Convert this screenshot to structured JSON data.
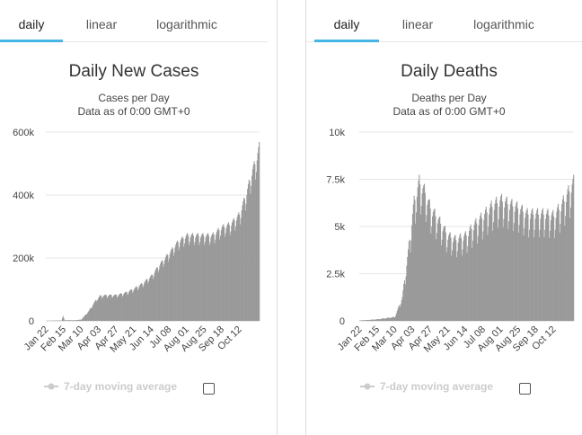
{
  "tabs": [
    {
      "label": "daily",
      "active": true
    },
    {
      "label": "linear",
      "active": false
    },
    {
      "label": "logarithmic",
      "active": false
    }
  ],
  "legend_label": "7-day moving average",
  "colors": {
    "accent": "#45b6e6",
    "bars": "#999999",
    "legend": "#cccccc"
  },
  "chart_data": [
    {
      "type": "bar",
      "title": "Daily New Cases",
      "subtitle_lines": [
        "Cases per Day",
        "Data as of 0:00 GMT+0"
      ],
      "ylim": [
        0,
        600000
      ],
      "yticks": [
        0,
        200000,
        400000,
        600000
      ],
      "ytick_labels": [
        "0",
        "200k",
        "400k",
        "600k"
      ],
      "xtick_labels": [
        "Jan 22",
        "Feb 15",
        "Mar 10",
        "Apr 03",
        "Apr 27",
        "May 21",
        "Jun 14",
        "Jul 08",
        "Aug 01",
        "Aug 25",
        "Sep 18",
        "Oct 12"
      ],
      "x_start": "2020-01-22",
      "x_end": "2020-11-08",
      "approx_trend": [
        [
          "2020-01-22",
          0
        ],
        [
          "2020-02-12",
          1500
        ],
        [
          "2020-02-14",
          15000
        ],
        [
          "2020-02-16",
          2000
        ],
        [
          "2020-03-01",
          2000
        ],
        [
          "2020-03-10",
          4000
        ],
        [
          "2020-03-20",
          30000
        ],
        [
          "2020-03-30",
          65000
        ],
        [
          "2020-04-05",
          78000
        ],
        [
          "2020-04-15",
          80000
        ],
        [
          "2020-04-27",
          80000
        ],
        [
          "2020-05-10",
          88000
        ],
        [
          "2020-05-21",
          100000
        ],
        [
          "2020-06-01",
          115000
        ],
        [
          "2020-06-14",
          140000
        ],
        [
          "2020-06-25",
          175000
        ],
        [
          "2020-07-08",
          210000
        ],
        [
          "2020-07-20",
          245000
        ],
        [
          "2020-08-01",
          265000
        ],
        [
          "2020-08-12",
          265000
        ],
        [
          "2020-08-25",
          265000
        ],
        [
          "2020-09-05",
          265000
        ],
        [
          "2020-09-18",
          290000
        ],
        [
          "2020-09-30",
          300000
        ],
        [
          "2020-10-12",
          330000
        ],
        [
          "2020-10-22",
          400000
        ],
        [
          "2020-10-30",
          470000
        ],
        [
          "2020-11-04",
          500000
        ],
        [
          "2020-11-08",
          540000
        ]
      ]
    },
    {
      "type": "bar",
      "title": "Daily Deaths",
      "subtitle_lines": [
        "Deaths per Day",
        "Data as of 0:00 GMT+0"
      ],
      "ylim": [
        0,
        10000
      ],
      "yticks": [
        0,
        2500,
        5000,
        7500,
        10000
      ],
      "ytick_labels": [
        "0",
        "2.5k",
        "5k",
        "7.5k",
        "10k"
      ],
      "xtick_labels": [
        "Jan 22",
        "Feb 15",
        "Mar 10",
        "Apr 03",
        "Apr 27",
        "May 21",
        "Jun 14",
        "Jul 08",
        "Aug 01",
        "Aug 25",
        "Sep 18",
        "Oct 12"
      ],
      "x_start": "2020-01-22",
      "x_end": "2020-11-08",
      "approx_trend": [
        [
          "2020-01-22",
          20
        ],
        [
          "2020-02-15",
          80
        ],
        [
          "2020-03-10",
          200
        ],
        [
          "2020-03-20",
          1200
        ],
        [
          "2020-03-28",
          3500
        ],
        [
          "2020-04-05",
          6000
        ],
        [
          "2020-04-12",
          7000
        ],
        [
          "2020-04-20",
          6500
        ],
        [
          "2020-04-27",
          5700
        ],
        [
          "2020-05-10",
          5000
        ],
        [
          "2020-05-21",
          4300
        ],
        [
          "2020-06-01",
          4100
        ],
        [
          "2020-06-14",
          4300
        ],
        [
          "2020-06-25",
          4800
        ],
        [
          "2020-07-08",
          5300
        ],
        [
          "2020-07-20",
          5800
        ],
        [
          "2020-08-01",
          6100
        ],
        [
          "2020-08-12",
          5900
        ],
        [
          "2020-08-25",
          5700
        ],
        [
          "2020-09-05",
          5400
        ],
        [
          "2020-09-18",
          5400
        ],
        [
          "2020-09-30",
          5400
        ],
        [
          "2020-10-12",
          5300
        ],
        [
          "2020-10-22",
          5800
        ],
        [
          "2020-11-01",
          6500
        ],
        [
          "2020-11-08",
          7000
        ]
      ]
    }
  ]
}
